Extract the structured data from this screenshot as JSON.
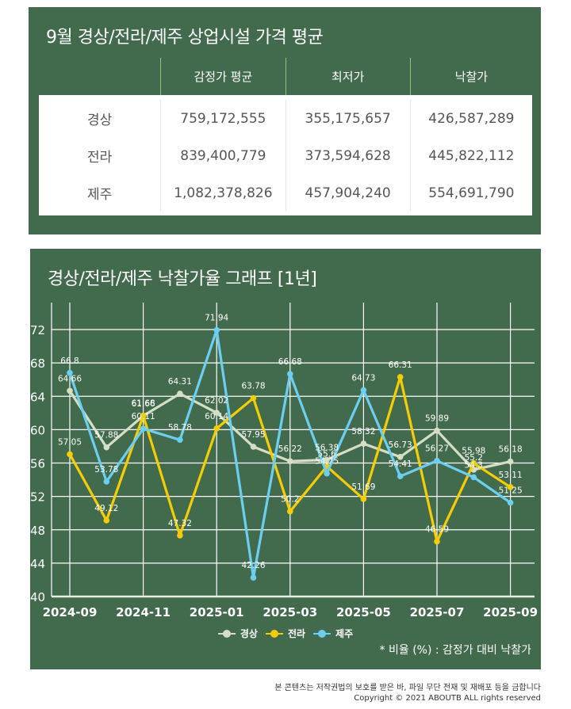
{
  "table_panel": {
    "title": "9월 경상/전라/제주 상업시설 가격 평균",
    "headers": [
      "",
      "감정가 평균",
      "최저가",
      "낙찰가"
    ],
    "rows": [
      {
        "region": "경상",
        "appraisal_avg": "759,172,555",
        "minimum": "355,175,657",
        "winning_bid": "426,587,289"
      },
      {
        "region": "전라",
        "appraisal_avg": "839,400,779",
        "minimum": "373,594,628",
        "winning_bid": "445,822,112"
      },
      {
        "region": "제주",
        "appraisal_avg": "1,082,378,826",
        "minimum": "457,904,240",
        "winning_bid": "554,691,790"
      }
    ]
  },
  "chart_panel": {
    "title": "경상/전라/제주 낙찰가율 그래프 [1년]",
    "note": "* 비율 (%) : 감정가 대비 낙찰가"
  },
  "chart_data": {
    "type": "line",
    "title": "경상/전라/제주 낙찰가율 그래프 [1년]",
    "xlabel": "",
    "ylabel": "",
    "x": [
      "2024-09",
      "2024-10",
      "2024-11",
      "2024-12",
      "2025-01",
      "2025-02",
      "2025-03",
      "2025-04",
      "2025-05",
      "2025-06",
      "2025-07",
      "2025-08",
      "2025-09"
    ],
    "x_tick_labels": [
      "2024-09",
      "2024-11",
      "2025-01",
      "2025-03",
      "2025-05",
      "2025-07",
      "2025-09"
    ],
    "y_ticks": [
      40,
      44,
      48,
      52,
      56,
      60,
      64,
      68,
      72
    ],
    "ylim": [
      40,
      74
    ],
    "grid": true,
    "legend_position": "bottom-center",
    "series": [
      {
        "name": "경상",
        "color": "#d6dfc4",
        "values": [
          64.66,
          57.88,
          61.66,
          64.31,
          62.02,
          57.95,
          56.22,
          56.38,
          58.32,
          56.73,
          59.89,
          55.2,
          56.18
        ]
      },
      {
        "name": "전라",
        "color": "#f5cd06",
        "values": [
          57.05,
          49.12,
          61.68,
          47.32,
          60.14,
          63.78,
          50.2,
          55.6,
          51.69,
          66.31,
          46.59,
          55.98,
          53.11
        ]
      },
      {
        "name": "제주",
        "color": "#6ccff2",
        "values": [
          66.8,
          53.78,
          60.11,
          58.78,
          71.94,
          42.26,
          66.68,
          54.75,
          64.73,
          54.41,
          56.27,
          54.3,
          51.25
        ]
      }
    ]
  },
  "footer": {
    "line1": "본 콘텐츠는 저작권법의 보호를 받은 바, 파일 무단 전재 및 재배포 등을 금합니다",
    "line2": "Copyright © 2021 ABOUTB ALL rights reserved"
  }
}
